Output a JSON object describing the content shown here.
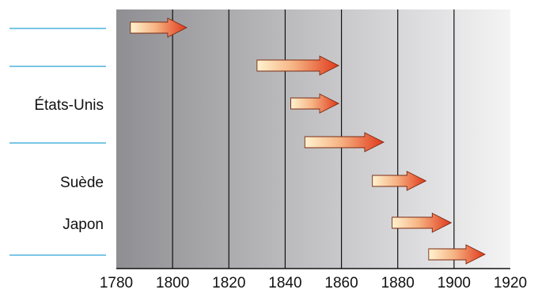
{
  "diagram": {
    "axis": {
      "ticks": [
        "1780",
        "1800",
        "1820",
        "1840",
        "1860",
        "1880",
        "1900",
        "1920"
      ],
      "range": [
        1780,
        1920
      ]
    },
    "rows": [
      {
        "label": "",
        "blank": true,
        "start": 1785,
        "end": 1805
      },
      {
        "label": "",
        "blank": true,
        "start": 1830,
        "end": 1859
      },
      {
        "label": "États-Unis",
        "blank": false,
        "start": 1842,
        "end": 1859
      },
      {
        "label": "",
        "blank": true,
        "start": 1847,
        "end": 1875
      },
      {
        "label": "Suède",
        "blank": false,
        "start": 1871,
        "end": 1890
      },
      {
        "label": "Japon",
        "blank": false,
        "start": 1878,
        "end": 1899
      },
      {
        "label": "",
        "blank": true,
        "start": 1891,
        "end": 1911
      }
    ],
    "colors": {
      "arrow_start": "#fff3cf",
      "arrow_end": "#e0391b",
      "band_dark": "#8f8f93",
      "band_light": "#f4f4f5",
      "blank_line": "#2aa3d8"
    }
  }
}
